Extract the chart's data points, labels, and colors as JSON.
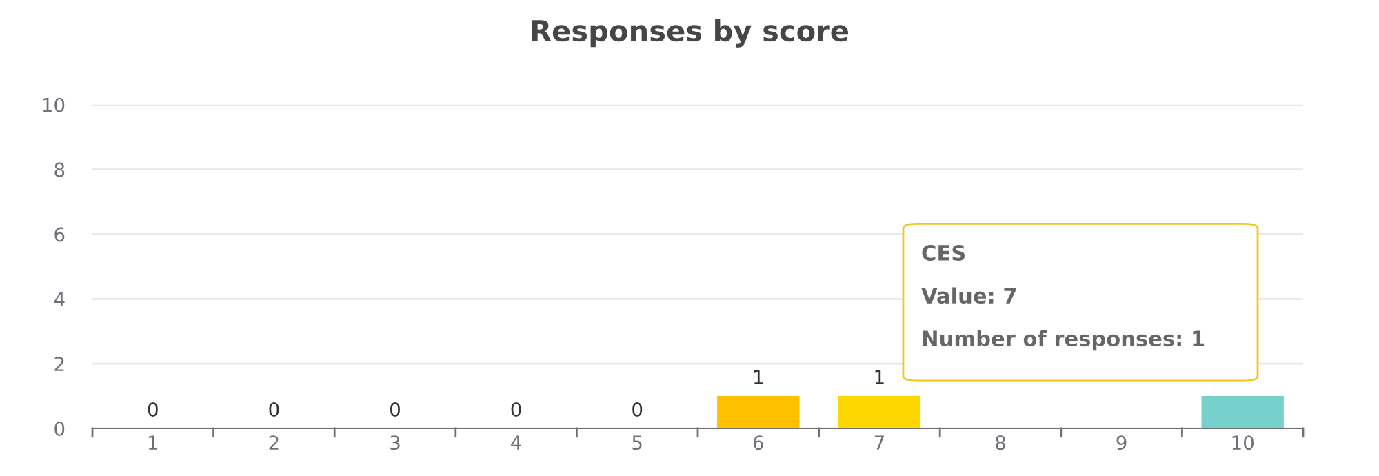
{
  "chart_data": {
    "type": "bar",
    "title": "Responses by score",
    "categories": [
      "1",
      "2",
      "3",
      "4",
      "5",
      "6",
      "7",
      "8",
      "9",
      "10"
    ],
    "values": [
      0,
      0,
      0,
      0,
      0,
      1,
      1,
      null,
      null,
      1
    ],
    "colors": [
      "#ffc000",
      "#ffc000",
      "#ffc000",
      "#ffc000",
      "#ffc000",
      "#ffc000",
      "#ffd700",
      "#76d1cc",
      "#76d1cc",
      "#76d1cc"
    ],
    "ylim": [
      0,
      10
    ],
    "yticks": [
      0,
      2,
      4,
      6,
      8,
      10
    ],
    "grid": "y",
    "value_labels": [
      "0",
      "0",
      "0",
      "0",
      "0",
      "1",
      "1",
      null,
      null,
      null
    ],
    "annotations": [
      "CES",
      "Value: 7",
      "Number of responses: 1"
    ]
  }
}
